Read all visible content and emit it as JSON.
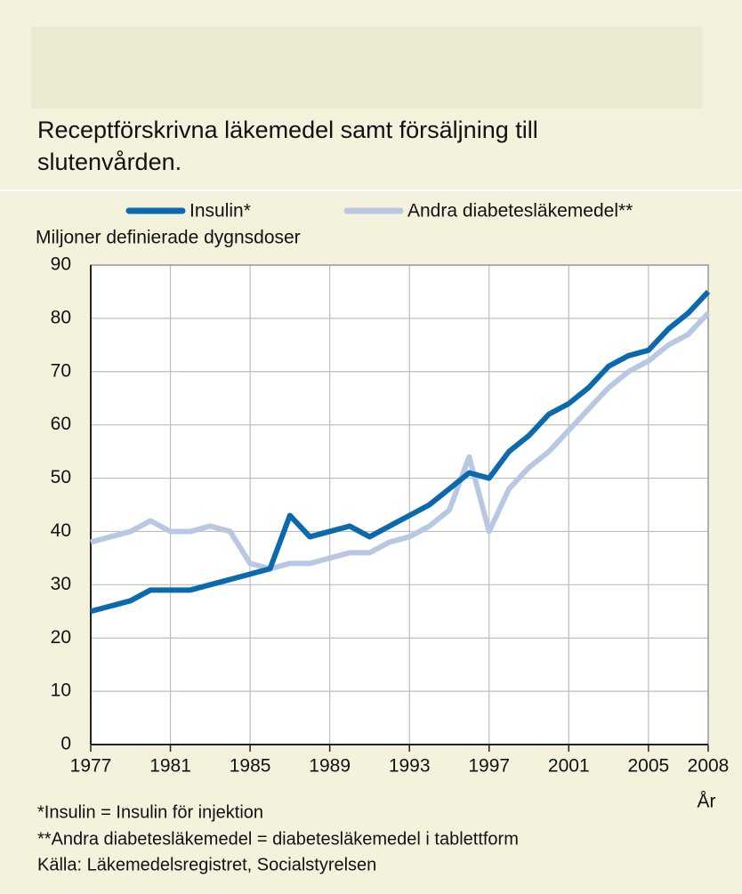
{
  "chart_data": {
    "type": "line",
    "title": "Receptförskrivna läkemedel samt försäljning till slutenvården.",
    "y_label": "Miljoner definierade dygnsdoser",
    "x_label": "År",
    "x": [
      1977,
      1978,
      1979,
      1980,
      1981,
      1982,
      1983,
      1984,
      1985,
      1986,
      1987,
      1988,
      1989,
      1990,
      1991,
      1992,
      1993,
      1994,
      1995,
      1996,
      1997,
      1998,
      1999,
      2000,
      2001,
      2002,
      2003,
      2004,
      2005,
      2006,
      2007,
      2008
    ],
    "series": [
      {
        "name": "Insulin*",
        "color": "#0b69ad",
        "values": [
          25,
          26,
          27,
          29,
          29,
          29,
          30,
          31,
          32,
          33,
          43,
          39,
          40,
          41,
          39,
          41,
          43,
          45,
          48,
          51,
          50,
          55,
          58,
          62,
          64,
          67,
          71,
          73,
          74,
          78,
          81,
          85
        ]
      },
      {
        "name": "Andra diabetesläkemedel**",
        "color": "#b8c8e3",
        "values": [
          38,
          39,
          40,
          42,
          40,
          40,
          41,
          40,
          34,
          33,
          34,
          34,
          35,
          36,
          36,
          38,
          39,
          41,
          44,
          54,
          40,
          48,
          52,
          55,
          59,
          63,
          67,
          70,
          72,
          75,
          77,
          81
        ]
      }
    ],
    "xlim": [
      1977,
      2008
    ],
    "xticks": [
      1977,
      1981,
      1985,
      1989,
      1993,
      1997,
      2001,
      2005,
      2008
    ],
    "ylim": [
      0,
      90
    ],
    "yticks": [
      0,
      10,
      20,
      30,
      40,
      50,
      60,
      70,
      80,
      90
    ],
    "grid": true,
    "footnotes": [
      "*Insulin = Insulin för injektion",
      "**Andra diabetesläkemedel = diabetesläkemedel i tablettform",
      "Källa: Läkemedelsregistret, Socialstyrelsen"
    ]
  }
}
